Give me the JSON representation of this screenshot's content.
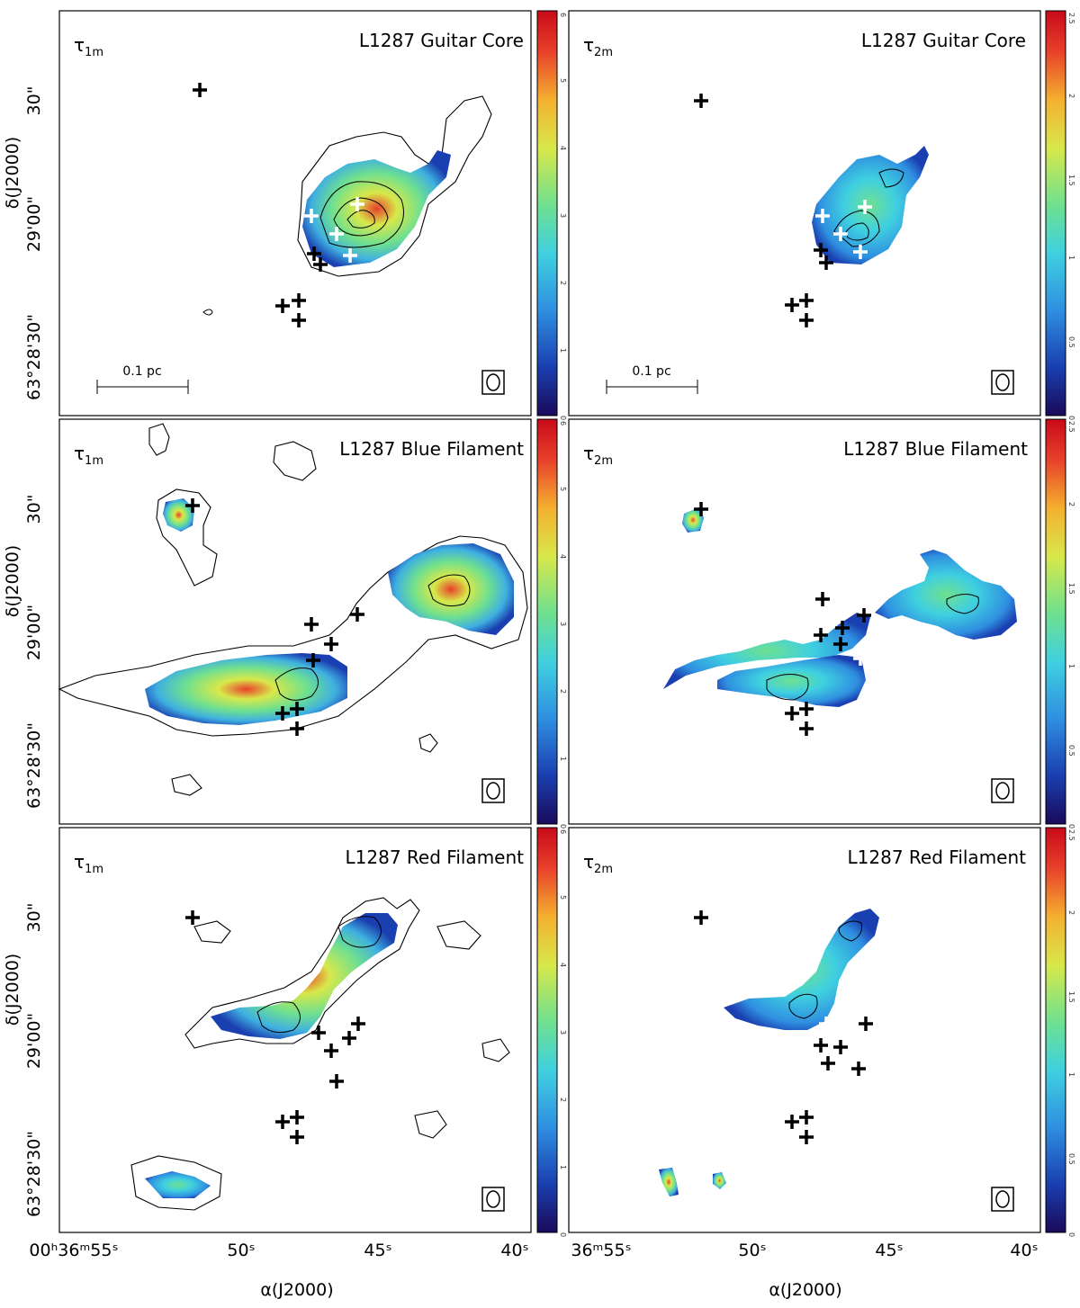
{
  "figure": {
    "columns": [
      {
        "tau_main": "τ",
        "tau_sub": "1m",
        "colorbar_ticks": [
          "0",
          "1",
          "2",
          "3",
          "4",
          "5",
          "6"
        ]
      },
      {
        "tau_main": "τ",
        "tau_sub": "2m",
        "colorbar_ticks": [
          "0",
          "0.5",
          "1",
          "1.5",
          "2",
          "2.5"
        ]
      }
    ],
    "rows": [
      {
        "title": "L1287 Guitar Core"
      },
      {
        "title": "L1287 Blue Filament"
      },
      {
        "title": "L1287 Red Filament"
      }
    ],
    "scalebar_label": "0.1 pc",
    "dec_axis": {
      "label": "δ(J2000)",
      "ticks": [
        {
          "text": "30\"",
          "value": "63°29'30\""
        },
        {
          "text": "29'00\"",
          "value": "63°29'00\""
        },
        {
          "text": "63°28'30\"",
          "value": "63°28'30\""
        }
      ]
    },
    "ra_axis": {
      "label": "α(J2000)",
      "left_ticks": [
        "00ʰ36ᵐ55ˢ",
        "50ˢ",
        "45ˢ",
        "40ˢ"
      ],
      "right_ticks": [
        "36ᵐ55ˢ",
        "50ˢ",
        "45ˢ",
        "40ˢ"
      ]
    },
    "colormap": [
      "#1a0a5a",
      "#1a3fb0",
      "#2f8fe0",
      "#3fd0e0",
      "#6fe08f",
      "#d8e84a",
      "#f4b030",
      "#e8402a",
      "#c80a1a"
    ]
  }
}
